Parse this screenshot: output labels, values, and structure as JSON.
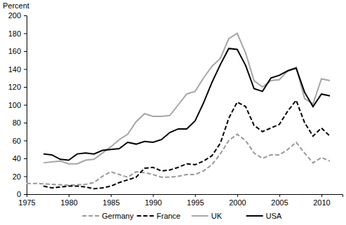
{
  "chart_data": {
    "type": "line",
    "y_label": "Percent",
    "x": [
      1975,
      1976,
      1977,
      1978,
      1979,
      1980,
      1981,
      1982,
      1983,
      1984,
      1985,
      1986,
      1987,
      1988,
      1989,
      1990,
      1991,
      1992,
      1993,
      1994,
      1995,
      1996,
      1997,
      1998,
      1999,
      2000,
      2001,
      2002,
      2003,
      2004,
      2005,
      2006,
      2007,
      2008,
      2009,
      2010,
      2011
    ],
    "series": [
      {
        "name": "Germany",
        "color": "#999999",
        "line_style": "dashed",
        "values": [
          12,
          12,
          11.5,
          11,
          10.5,
          10,
          10.5,
          11,
          13,
          20,
          25,
          22,
          19,
          25,
          24,
          22,
          19,
          19,
          20,
          22,
          22,
          26,
          33,
          45,
          60,
          67,
          60,
          46,
          40,
          44,
          44,
          50,
          58,
          46,
          35,
          41,
          37
        ]
      },
      {
        "name": "France",
        "color": "#000000",
        "line_style": "dashed",
        "values": [
          null,
          null,
          9,
          7,
          8,
          9,
          9,
          8,
          6,
          7,
          9,
          13,
          16,
          19,
          29,
          30,
          26,
          27,
          30,
          34,
          33,
          37,
          43,
          57,
          85,
          103,
          98,
          77,
          70,
          74,
          78,
          93,
          105,
          80,
          65,
          74,
          65
        ]
      },
      {
        "name": "UK",
        "color": "#a6a6a6",
        "line_style": "solid",
        "values": [
          null,
          null,
          35,
          36,
          37,
          34,
          34,
          38,
          39,
          46,
          53,
          61,
          67,
          81,
          90,
          87,
          87,
          88,
          100,
          112,
          115,
          130,
          143,
          152,
          174,
          180,
          158,
          127,
          120,
          127,
          128,
          138,
          142,
          107,
          101,
          129,
          127
        ]
      },
      {
        "name": "USA",
        "color": "#000000",
        "line_style": "solid",
        "values": [
          null,
          null,
          45,
          44,
          39,
          38,
          45,
          46,
          45,
          49,
          50,
          51,
          58,
          56,
          59,
          58,
          61,
          69,
          73,
          73,
          82,
          102,
          125,
          145,
          163,
          162,
          144,
          118,
          115,
          130,
          133,
          138,
          141,
          114,
          98,
          112,
          110
        ]
      }
    ],
    "xlim": [
      1975,
      2012.5
    ],
    "xticks": [
      1975,
      1980,
      1985,
      1990,
      1995,
      2000,
      2005,
      2010
    ],
    "ylim": [
      0,
      200
    ],
    "yticks": [
      0,
      20,
      40,
      60,
      80,
      100,
      120,
      140,
      160,
      180,
      200
    ],
    "grid": false,
    "legend": "bottom"
  }
}
